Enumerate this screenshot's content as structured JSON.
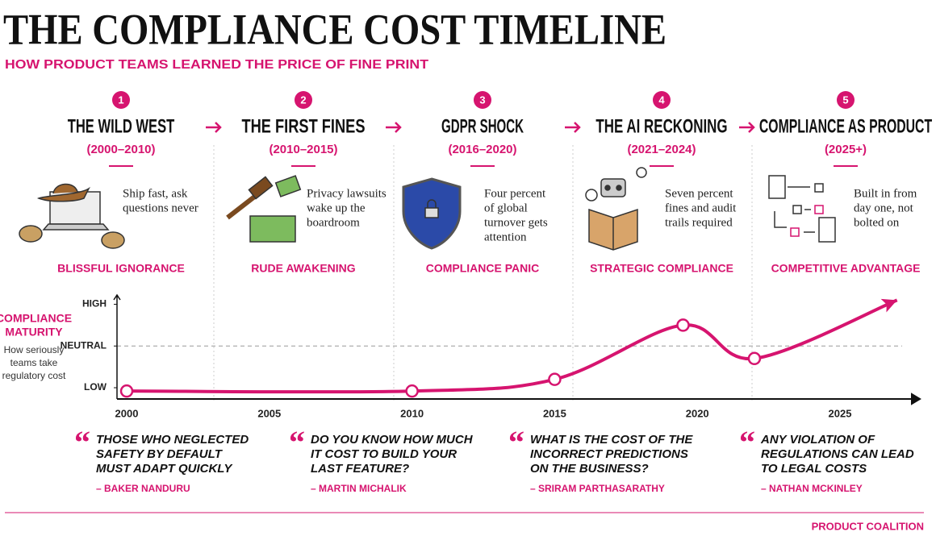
{
  "header": {
    "title": "THE COMPLIANCE COST TIMELINE",
    "subtitle": "HOW PRODUCT TEAMS LEARNED THE PRICE OF FINE PRINT"
  },
  "eras": [
    {
      "number": "1",
      "title": "THE WILD WEST",
      "dates": "(2000–2010)",
      "description": [
        "Ship fast, ask",
        "questions never"
      ],
      "label": "BLISSFUL IGNORANCE"
    },
    {
      "number": "2",
      "title": "THE FIRST FINES",
      "dates": "(2010–2015)",
      "description": [
        "Privacy lawsuits",
        "wake up the",
        "boardroom"
      ],
      "label": "RUDE AWAKENING"
    },
    {
      "number": "3",
      "title": "GDPR SHOCK",
      "dates": "(2016–2020)",
      "description": [
        "Four percent",
        "of global",
        "turnover gets",
        "attention"
      ],
      "label": "COMPLIANCE PANIC"
    },
    {
      "number": "4",
      "title": "THE AI RECKONING",
      "dates": "(2021–2024)",
      "description": [
        "Seven percent",
        "fines and audit",
        "trails required"
      ],
      "label": "STRATEGIC COMPLIANCE"
    },
    {
      "number": "5",
      "title": "COMPLIANCE AS PRODUCT",
      "dates": "(2025+)",
      "description": [
        "Built in from",
        "day one, not",
        "bolted on"
      ],
      "label": "COMPETITIVE ADVANTAGE"
    }
  ],
  "chart_data": {
    "type": "line",
    "y_label": [
      "COMPLIANCE",
      "MATURITY"
    ],
    "y_note": [
      "How seriously",
      "teams take",
      "regulatory cost"
    ],
    "x": [
      2000,
      2010,
      2015,
      2019.5,
      2022,
      2027
    ],
    "series": [
      {
        "color": "#d6146f",
        "values": [
          -0.08,
          -0.08,
          0.2,
          1.5,
          0.7,
          2.1
        ]
      }
    ],
    "xlim": [
      1999.66,
      2027.8
    ],
    "xticks": [
      2000,
      2005,
      2010,
      2015,
      2020,
      2025
    ],
    "ylim": [
      -0.27,
      2.3
    ],
    "yticks": [
      {
        "value": 0,
        "label": "LOW"
      },
      {
        "value": 1,
        "label": "NEUTRAL"
      },
      {
        "value": 2,
        "label": "HIGH"
      }
    ]
  },
  "quotes": [
    {
      "text": [
        "THOSE WHO NEGLECTED",
        "SAFETY BY DEFAULT",
        "MUST ADAPT QUICKLY"
      ],
      "author": "– BAKER NANDURU"
    },
    {
      "text": [
        "DO YOU KNOW HOW MUCH",
        "IT COST TO BUILD YOUR",
        "LAST FEATURE?"
      ],
      "author": "– MARTIN MICHALIK"
    },
    {
      "text": [
        "WHAT IS THE COST OF THE",
        "INCORRECT PREDICTIONS",
        "ON THE BUSINESS?"
      ],
      "author": "– SRIRAM PARTHASARATHY"
    },
    {
      "text": [
        "ANY VIOLATION OF",
        "REGULATIONS CAN LEAD",
        "TO LEGAL COSTS"
      ],
      "author": "– NATHAN MCKINLEY"
    }
  ],
  "footer": "PRODUCT COALITION"
}
